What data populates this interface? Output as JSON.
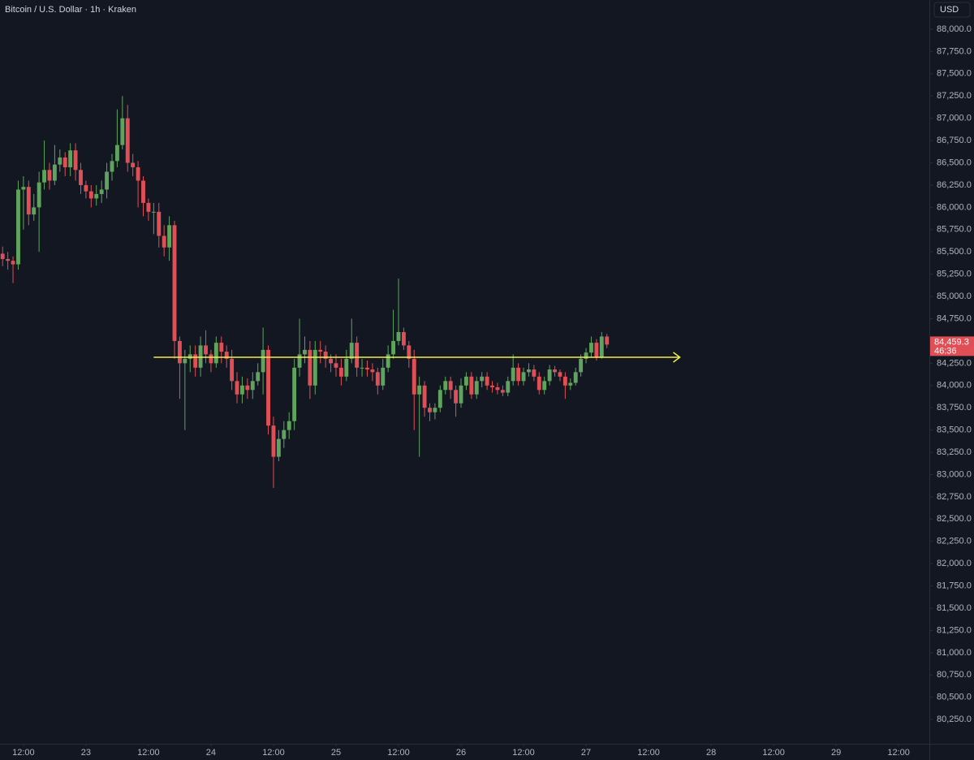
{
  "header": {
    "title": "Bitcoin / U.S. Dollar · 1h · Kraken",
    "currency": "USD"
  },
  "chart_data": {
    "type": "candlestick",
    "up_color": "#5fa35e",
    "down_color": "#e04f56",
    "open": [
      85480,
      85420,
      85400,
      85360,
      86200,
      86230,
      85920,
      86000,
      86280,
      86420,
      86300,
      86480,
      86560,
      86450,
      86640,
      86420,
      86250,
      86180,
      86100,
      86150,
      86200,
      86400,
      86520,
      86700,
      87000,
      86500,
      86450,
      86300,
      86050,
      85950,
      85950,
      85680,
      85550,
      85800,
      84500,
      84250,
      84300,
      84350,
      84200,
      84450,
      84350,
      84250,
      84480,
      84380,
      84300,
      84050,
      83900,
      84000,
      83950,
      84050,
      84150,
      84400,
      83550,
      83200,
      83400,
      83500,
      83600,
      84200,
      84350,
      84400,
      84000,
      84400,
      84380,
      84300,
      84250,
      84200,
      84100,
      84300,
      84480,
      84200,
      84200,
      84180,
      84150,
      84000,
      84200,
      84350,
      84500,
      84600,
      84450,
      84300,
      83900,
      84000,
      83750,
      83700,
      83750,
      83950,
      84050,
      83950,
      83800,
      84000,
      84100,
      83900,
      84050,
      84100,
      84000,
      83980,
      83950,
      83920,
      84050,
      84200,
      84050,
      84150,
      84180,
      84100,
      83950,
      84050,
      84180,
      84150,
      84100,
      84000,
      84030,
      84150,
      84300,
      84370,
      84480,
      84320,
      84550
    ],
    "high": [
      85560,
      85500,
      85450,
      86300,
      86350,
      86300,
      86150,
      86400,
      86750,
      86500,
      86700,
      86650,
      86620,
      86720,
      86720,
      86500,
      86300,
      86250,
      86250,
      86300,
      86500,
      86600,
      87100,
      87250,
      87150,
      86600,
      86520,
      86350,
      86100,
      86050,
      86050,
      85800,
      85900,
      85850,
      84550,
      84400,
      84450,
      84450,
      84550,
      84620,
      84400,
      84550,
      84550,
      84450,
      84400,
      84150,
      84100,
      84080,
      84150,
      84250,
      84650,
      84450,
      83650,
      83500,
      83600,
      83700,
      84300,
      84750,
      84550,
      84500,
      84500,
      84500,
      84450,
      84350,
      84350,
      84300,
      84400,
      84750,
      84550,
      84300,
      84280,
      84250,
      84200,
      84300,
      84450,
      84850,
      85200,
      84650,
      84500,
      84400,
      84100,
      84050,
      83800,
      83800,
      84000,
      84100,
      84100,
      84000,
      84080,
      84150,
      84150,
      84100,
      84150,
      84150,
      84050,
      84030,
      84000,
      84100,
      84350,
      84250,
      84200,
      84250,
      84230,
      84150,
      84100,
      84230,
      84220,
      84180,
      84150,
      84080,
      84200,
      84350,
      84420,
      84550,
      84520,
      84600,
      84580
    ],
    "low": [
      85340,
      85300,
      85150,
      85300,
      85750,
      85800,
      85850,
      85500,
      86200,
      86200,
      86250,
      86400,
      86350,
      86350,
      86300,
      86150,
      86100,
      86000,
      86020,
      86050,
      86100,
      86300,
      86450,
      86650,
      86400,
      86350,
      86000,
      85900,
      85850,
      85700,
      85550,
      85450,
      85400,
      84300,
      83850,
      83500,
      84150,
      84100,
      84100,
      84250,
      84150,
      84200,
      84250,
      84200,
      83950,
      83800,
      83800,
      83850,
      83850,
      84000,
      83900,
      83450,
      82850,
      83150,
      83300,
      83400,
      83500,
      84100,
      84250,
      83850,
      83900,
      84250,
      84200,
      84150,
      84100,
      84000,
      84050,
      84250,
      84100,
      84100,
      84100,
      84050,
      83900,
      83950,
      84150,
      84300,
      84450,
      84400,
      84200,
      83500,
      83200,
      83650,
      83600,
      83620,
      83700,
      83900,
      83850,
      83650,
      83750,
      83950,
      83850,
      83850,
      83980,
      83950,
      83920,
      83900,
      83880,
      83880,
      84000,
      84000,
      84000,
      84100,
      84050,
      83900,
      83900,
      84000,
      84100,
      84050,
      83850,
      83950,
      84000,
      84100,
      84250,
      84320,
      84280,
      84300,
      84420
    ],
    "close": [
      85420,
      85400,
      85360,
      86200,
      86230,
      85920,
      86000,
      86280,
      86420,
      86300,
      86480,
      86560,
      86450,
      86640,
      86420,
      86250,
      86180,
      86100,
      86150,
      86200,
      86400,
      86520,
      86700,
      87000,
      86500,
      86450,
      86300,
      86050,
      85950,
      85950,
      85680,
      85550,
      85800,
      84500,
      84250,
      84300,
      84350,
      84200,
      84450,
      84350,
      84250,
      84480,
      84380,
      84300,
      84050,
      83900,
      84000,
      83950,
      84050,
      84150,
      84400,
      83550,
      83200,
      83400,
      83500,
      83600,
      84200,
      84350,
      84400,
      84000,
      84400,
      84380,
      84300,
      84250,
      84200,
      84100,
      84300,
      84480,
      84200,
      84200,
      84180,
      84150,
      84000,
      84200,
      84350,
      84500,
      84600,
      84450,
      84300,
      83900,
      84000,
      83750,
      83700,
      83750,
      83950,
      84050,
      83950,
      83800,
      84000,
      84100,
      83900,
      84050,
      84100,
      84000,
      83980,
      83950,
      83920,
      84050,
      84200,
      84050,
      84150,
      84180,
      84100,
      83950,
      84050,
      84180,
      84150,
      84100,
      84000,
      84030,
      84150,
      84300,
      84370,
      84480,
      84320,
      84550,
      84459.3
    ],
    "xlim": [
      -0.5,
      177.9
    ],
    "xticks": [
      {
        "value": 4,
        "label": "12:00"
      },
      {
        "value": 16,
        "label": "23"
      },
      {
        "value": 28,
        "label": "12:00"
      },
      {
        "value": 40,
        "label": "24"
      },
      {
        "value": 52,
        "label": "12:00"
      },
      {
        "value": 64,
        "label": "25"
      },
      {
        "value": 76,
        "label": "12:00"
      },
      {
        "value": 88,
        "label": "26"
      },
      {
        "value": 100,
        "label": "12:00"
      },
      {
        "value": 112,
        "label": "27"
      },
      {
        "value": 124,
        "label": "12:00"
      },
      {
        "value": 136,
        "label": "28"
      },
      {
        "value": 148,
        "label": "12:00"
      },
      {
        "value": 160,
        "label": "29"
      },
      {
        "value": 172,
        "label": "12:00"
      }
    ],
    "ylim": [
      79978,
      88328
    ],
    "yticks": [
      {
        "value": 88000,
        "label": "88,000.0"
      },
      {
        "value": 87750,
        "label": "87,750.0"
      },
      {
        "value": 87500,
        "label": "87,500.0"
      },
      {
        "value": 87250,
        "label": "87,250.0"
      },
      {
        "value": 87000,
        "label": "87,000.0"
      },
      {
        "value": 86750,
        "label": "86,750.0"
      },
      {
        "value": 86500,
        "label": "86,500.0"
      },
      {
        "value": 86250,
        "label": "86,250.0"
      },
      {
        "value": 86000,
        "label": "86,000.0"
      },
      {
        "value": 85750,
        "label": "85,750.0"
      },
      {
        "value": 85500,
        "label": "85,500.0"
      },
      {
        "value": 85250,
        "label": "85,250.0"
      },
      {
        "value": 85000,
        "label": "85,000.0"
      },
      {
        "value": 84750,
        "label": "84,750.0"
      },
      {
        "value": 84500,
        "label": "84,500.0"
      },
      {
        "value": 84250,
        "label": "84,250.0"
      },
      {
        "value": 84000,
        "label": "84,000.0"
      },
      {
        "value": 83750,
        "label": "83,750.0"
      },
      {
        "value": 83500,
        "label": "83,500.0"
      },
      {
        "value": 83250,
        "label": "83,250.0"
      },
      {
        "value": 83000,
        "label": "83,000.0"
      },
      {
        "value": 82750,
        "label": "82,750.0"
      },
      {
        "value": 82500,
        "label": "82,500.0"
      },
      {
        "value": 82250,
        "label": "82,250.0"
      },
      {
        "value": 82000,
        "label": "82,000.0"
      },
      {
        "value": 81750,
        "label": "81,750.0"
      },
      {
        "value": 81500,
        "label": "81,500.0"
      },
      {
        "value": 81250,
        "label": "81,250.0"
      },
      {
        "value": 81000,
        "label": "81,000.0"
      },
      {
        "value": 80750,
        "label": "80,750.0"
      },
      {
        "value": 80500,
        "label": "80,500.0"
      },
      {
        "value": 80250,
        "label": "80,250.0"
      }
    ],
    "hline": {
      "value": 84317,
      "start": 29,
      "end": 130,
      "color": "#f2ee4e"
    },
    "last_price": {
      "value": 84459.3,
      "label": "84,459.3",
      "countdown": "46:36"
    }
  }
}
